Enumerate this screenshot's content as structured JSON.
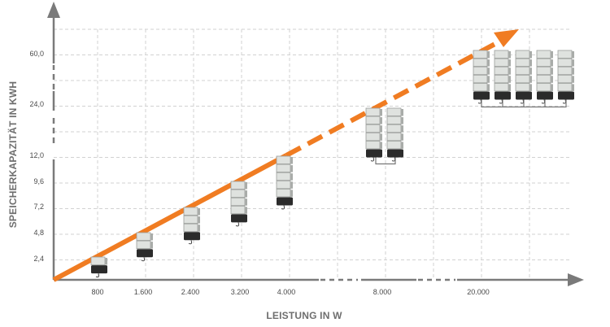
{
  "chart_data": {
    "type": "scatter",
    "xlabel": "LEISTUNG IN W",
    "ylabel": "SPEICHERKAPAZITÄT IN KWH",
    "x_ticks": [
      "800",
      "1.600",
      "2.400",
      "3.200",
      "4.000",
      "8.000",
      "20.000"
    ],
    "y_ticks": [
      "2,4",
      "4,8",
      "7,2",
      "9,6",
      "12,0",
      "24,0",
      "60,0"
    ],
    "axis_breaks": {
      "x": [
        "4.000–8.000",
        "8.000–20.000"
      ],
      "y": [
        "12,0–24,0",
        "24,0–60,0"
      ]
    },
    "grid": true,
    "points": [
      {
        "x": 800,
        "y": 2.4,
        "modules": 1,
        "units": 1
      },
      {
        "x": 1600,
        "y": 4.8,
        "modules": 2,
        "units": 1
      },
      {
        "x": 2400,
        "y": 7.2,
        "modules": 3,
        "units": 1
      },
      {
        "x": 3200,
        "y": 9.6,
        "modules": 4,
        "units": 1
      },
      {
        "x": 4000,
        "y": 12.0,
        "modules": 5,
        "units": 1
      },
      {
        "x": 8000,
        "y": 24.0,
        "modules": 5,
        "units": 2
      },
      {
        "x": 20000,
        "y": 60.0,
        "modules": 5,
        "units": 5
      }
    ],
    "trend": {
      "style": "arrow",
      "solid_until": "4.000",
      "dashed_after": "4.000"
    }
  },
  "colors": {
    "trend": "#f07c22",
    "axis": "#7a7a7a",
    "grid": "#d2d2d2",
    "module_face": "#dfe2df",
    "module_dark": "#2b2b2b",
    "module_side": "#a9aca9"
  },
  "icons": {
    "storage_unit": "battery-stack-icon",
    "connector": "cable-icon"
  }
}
